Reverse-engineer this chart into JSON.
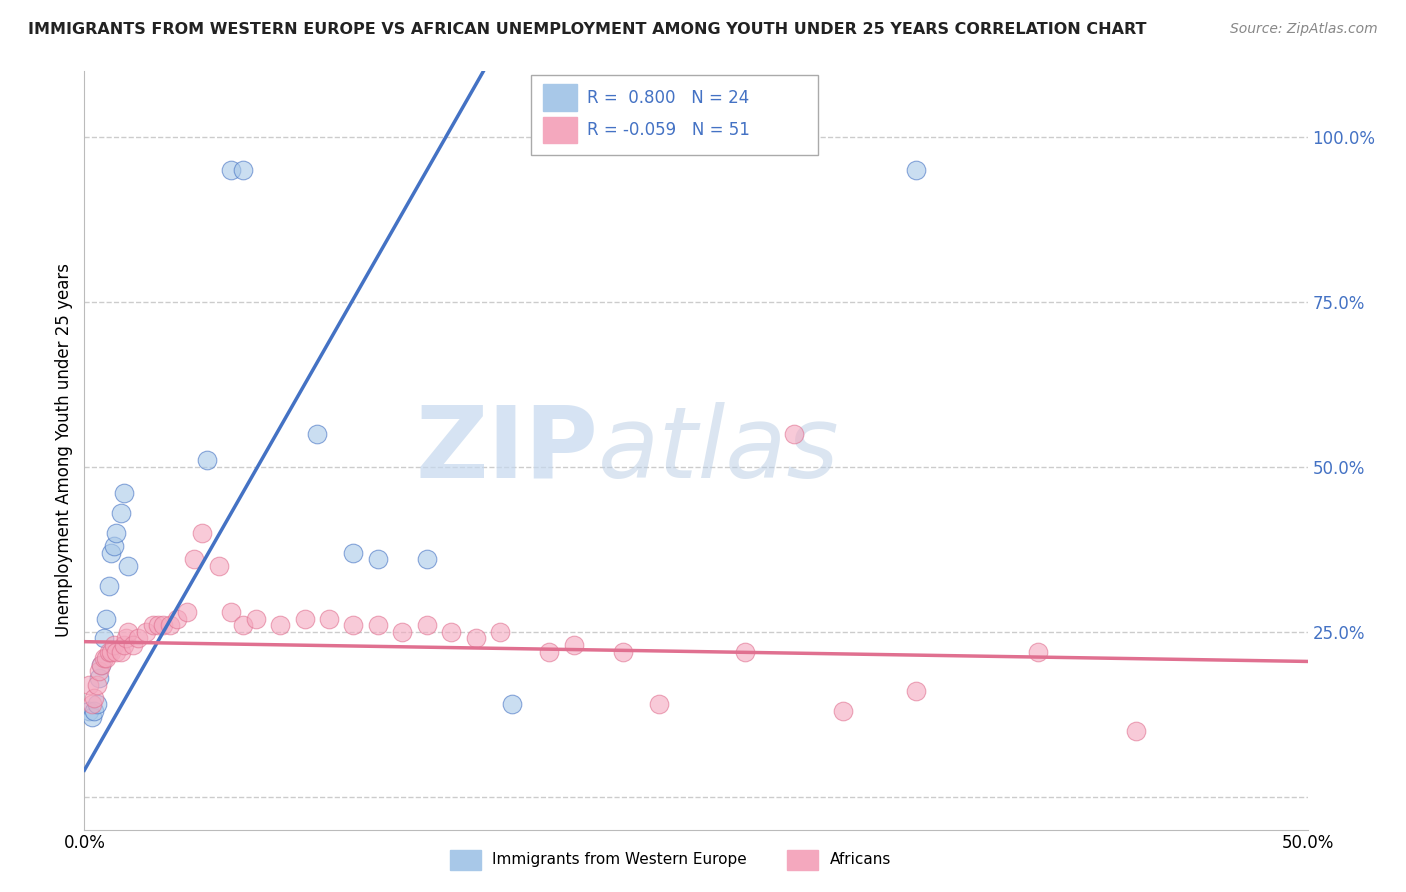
{
  "title": "IMMIGRANTS FROM WESTERN EUROPE VS AFRICAN UNEMPLOYMENT AMONG YOUTH UNDER 25 YEARS CORRELATION CHART",
  "source": "Source: ZipAtlas.com",
  "ylabel": "Unemployment Among Youth under 25 years",
  "legend_label1": "Immigrants from Western Europe",
  "legend_label2": "Africans",
  "r1": 0.8,
  "n1": 24,
  "r2": -0.059,
  "n2": 51,
  "blue_color": "#a8c8e8",
  "pink_color": "#f4a8be",
  "blue_line_color": "#4472c4",
  "pink_line_color": "#e07090",
  "blue_scatter": [
    [
      0.002,
      0.13
    ],
    [
      0.003,
      0.12
    ],
    [
      0.004,
      0.13
    ],
    [
      0.005,
      0.14
    ],
    [
      0.006,
      0.18
    ],
    [
      0.007,
      0.2
    ],
    [
      0.008,
      0.24
    ],
    [
      0.009,
      0.27
    ],
    [
      0.01,
      0.32
    ],
    [
      0.011,
      0.37
    ],
    [
      0.012,
      0.38
    ],
    [
      0.013,
      0.4
    ],
    [
      0.015,
      0.43
    ],
    [
      0.016,
      0.46
    ],
    [
      0.018,
      0.35
    ],
    [
      0.05,
      0.51
    ],
    [
      0.06,
      0.95
    ],
    [
      0.065,
      0.95
    ],
    [
      0.095,
      0.55
    ],
    [
      0.11,
      0.37
    ],
    [
      0.12,
      0.36
    ],
    [
      0.14,
      0.36
    ],
    [
      0.175,
      0.14
    ],
    [
      0.34,
      0.95
    ]
  ],
  "pink_scatter": [
    [
      0.002,
      0.17
    ],
    [
      0.003,
      0.14
    ],
    [
      0.004,
      0.15
    ],
    [
      0.005,
      0.17
    ],
    [
      0.006,
      0.19
    ],
    [
      0.007,
      0.2
    ],
    [
      0.008,
      0.21
    ],
    [
      0.009,
      0.21
    ],
    [
      0.01,
      0.22
    ],
    [
      0.011,
      0.22
    ],
    [
      0.012,
      0.23
    ],
    [
      0.013,
      0.22
    ],
    [
      0.015,
      0.22
    ],
    [
      0.016,
      0.23
    ],
    [
      0.017,
      0.24
    ],
    [
      0.018,
      0.25
    ],
    [
      0.02,
      0.23
    ],
    [
      0.022,
      0.24
    ],
    [
      0.025,
      0.25
    ],
    [
      0.028,
      0.26
    ],
    [
      0.03,
      0.26
    ],
    [
      0.032,
      0.26
    ],
    [
      0.035,
      0.26
    ],
    [
      0.038,
      0.27
    ],
    [
      0.042,
      0.28
    ],
    [
      0.045,
      0.36
    ],
    [
      0.048,
      0.4
    ],
    [
      0.055,
      0.35
    ],
    [
      0.06,
      0.28
    ],
    [
      0.065,
      0.26
    ],
    [
      0.07,
      0.27
    ],
    [
      0.08,
      0.26
    ],
    [
      0.09,
      0.27
    ],
    [
      0.1,
      0.27
    ],
    [
      0.11,
      0.26
    ],
    [
      0.12,
      0.26
    ],
    [
      0.13,
      0.25
    ],
    [
      0.14,
      0.26
    ],
    [
      0.15,
      0.25
    ],
    [
      0.16,
      0.24
    ],
    [
      0.17,
      0.25
    ],
    [
      0.19,
      0.22
    ],
    [
      0.2,
      0.23
    ],
    [
      0.22,
      0.22
    ],
    [
      0.235,
      0.14
    ],
    [
      0.27,
      0.22
    ],
    [
      0.29,
      0.55
    ],
    [
      0.31,
      0.13
    ],
    [
      0.34,
      0.16
    ],
    [
      0.39,
      0.22
    ],
    [
      0.43,
      0.1
    ]
  ],
  "blue_line": [
    0.0,
    0.08,
    1.05
  ],
  "pink_line": [
    0.0,
    0.5,
    0.22
  ],
  "xlim": [
    0.0,
    0.5
  ],
  "ylim": [
    -0.05,
    1.1
  ],
  "yticks": [
    0.0,
    0.25,
    0.5,
    0.75,
    1.0
  ],
  "ytick_labels": [
    "",
    "25.0%",
    "50.0%",
    "75.0%",
    "100.0%"
  ],
  "xtick_positions": [
    0.0,
    0.1,
    0.2,
    0.3,
    0.4,
    0.5
  ],
  "xtick_labels": [
    "0.0%",
    "",
    "",
    "",
    "",
    "50.0%"
  ],
  "watermark_zip": "ZIP",
  "watermark_atlas": "atlas",
  "background_color": "#ffffff",
  "grid_color": "#cccccc"
}
